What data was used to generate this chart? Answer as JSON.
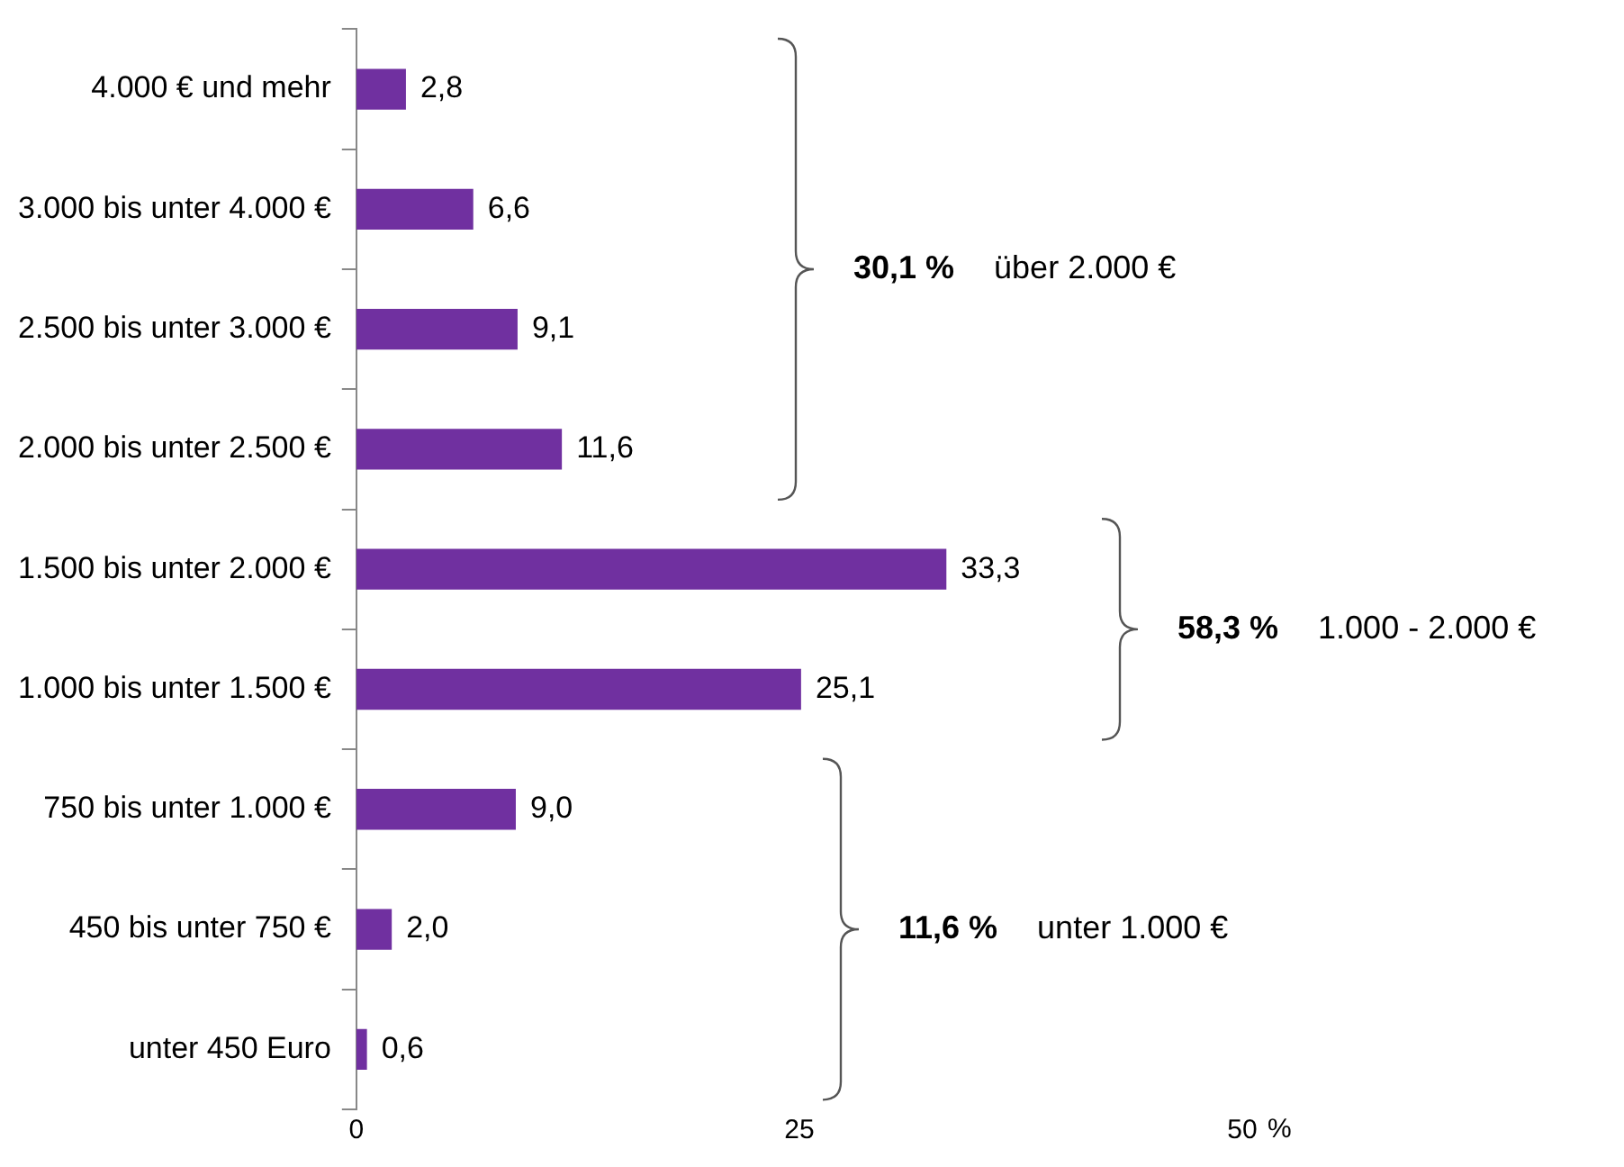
{
  "chart_data": {
    "type": "bar",
    "orientation": "horizontal",
    "categories": [
      "4.000 € und mehr",
      "3.000 bis unter 4.000 €",
      "2.500 bis unter 3.000 €",
      "2.000 bis unter 2.500 €",
      "1.500 bis unter 2.000 €",
      "1.000 bis unter 1.500 €",
      "750 bis unter 1.000 €",
      "450 bis unter 750 €",
      "unter 450 Euro"
    ],
    "values": [
      2.8,
      6.6,
      9.1,
      11.6,
      33.3,
      25.1,
      9.0,
      2.0,
      0.6
    ],
    "value_labels": [
      "2,8",
      "6,6",
      "9,1",
      "11,6",
      "33,3",
      "25,1",
      "9,0",
      "2,0",
      "0,6"
    ],
    "color": "#7030a0",
    "xlabel": "%",
    "xlim": [
      0,
      50
    ],
    "xticks": [
      0,
      25,
      50
    ],
    "grid": false,
    "legend": false,
    "annotations": [
      "30,1 %",
      "über 2.000 €",
      "58,3 %",
      "1.000 - 2.000 €",
      "11,6 %",
      "unter 1.000 €"
    ]
  }
}
